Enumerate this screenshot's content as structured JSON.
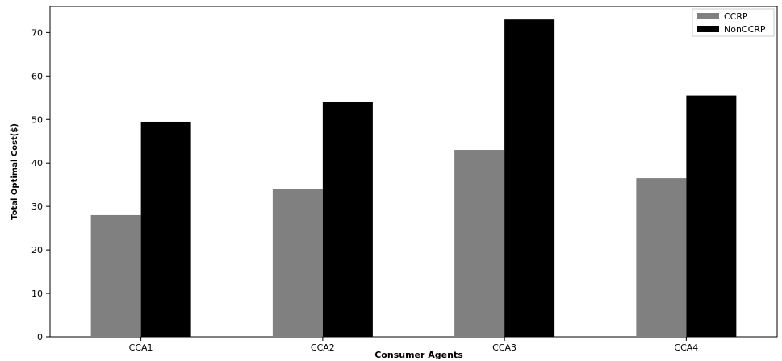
{
  "chart_data": {
    "type": "bar",
    "title": "",
    "xlabel": "Consumer Agents",
    "ylabel": "Total Optimal Cost($)",
    "categories": [
      "CCA1",
      "CCA2",
      "CCA3",
      "CCA4"
    ],
    "series": [
      {
        "name": "CCRP",
        "values": [
          28,
          34,
          43,
          36.5
        ],
        "color": "#808080"
      },
      {
        "name": "NonCCRP",
        "values": [
          49.5,
          54,
          73,
          55.5
        ],
        "color": "#000000"
      }
    ],
    "ylim": [
      0,
      76
    ],
    "yticks": [
      0,
      10,
      20,
      30,
      40,
      50,
      60,
      70
    ],
    "grid": false,
    "legend_position": "top-right"
  }
}
